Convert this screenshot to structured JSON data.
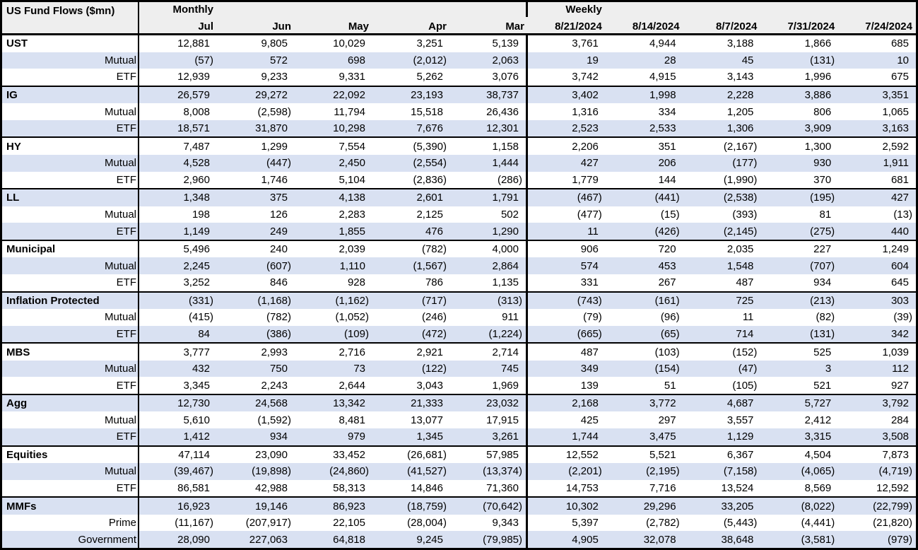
{
  "colors": {
    "band": "#D9E1F2",
    "header_bg": "#EEEEEE",
    "border": "#000000"
  },
  "chart_data": {
    "type": "table",
    "title": "US Fund Flows ($mn)",
    "units": "$mn",
    "column_groups": [
      {
        "label": "Monthly",
        "columns": [
          "Jul",
          "Jun",
          "May",
          "Apr",
          "Mar"
        ]
      },
      {
        "label": "Weekly",
        "columns": [
          "8/21/2024",
          "8/14/2024",
          "8/7/2024",
          "7/31/2024",
          "7/24/2024"
        ]
      }
    ],
    "number_format": "negatives in parentheses, thousands separators",
    "groups": [
      {
        "category": "UST",
        "rows": [
          {
            "label": "UST",
            "bold": true,
            "values": [
              12881,
              9805,
              10029,
              3251,
              5139,
              3761,
              4944,
              3188,
              1866,
              685
            ]
          },
          {
            "label": "Mutual",
            "bold": false,
            "values": [
              -57,
              572,
              698,
              -2012,
              2063,
              19,
              28,
              45,
              -131,
              10
            ]
          },
          {
            "label": "ETF",
            "bold": false,
            "values": [
              12939,
              9233,
              9331,
              5262,
              3076,
              3742,
              4915,
              3143,
              1996,
              675
            ]
          }
        ]
      },
      {
        "category": "IG",
        "rows": [
          {
            "label": "IG",
            "bold": true,
            "values": [
              26579,
              29272,
              22092,
              23193,
              38737,
              3402,
              1998,
              2228,
              3886,
              3351
            ]
          },
          {
            "label": "Mutual",
            "bold": false,
            "values": [
              8008,
              -2598,
              11794,
              15518,
              26436,
              1316,
              334,
              1205,
              806,
              1065
            ]
          },
          {
            "label": "ETF",
            "bold": false,
            "values": [
              18571,
              31870,
              10298,
              7676,
              12301,
              2523,
              2533,
              1306,
              3909,
              3163
            ]
          }
        ]
      },
      {
        "category": "HY",
        "rows": [
          {
            "label": "HY",
            "bold": true,
            "values": [
              7487,
              1299,
              7554,
              -5390,
              1158,
              2206,
              351,
              -2167,
              1300,
              2592
            ]
          },
          {
            "label": "Mutual",
            "bold": false,
            "values": [
              4528,
              -447,
              2450,
              -2554,
              1444,
              427,
              206,
              -177,
              930,
              1911
            ]
          },
          {
            "label": "ETF",
            "bold": false,
            "values": [
              2960,
              1746,
              5104,
              -2836,
              -286,
              1779,
              144,
              -1990,
              370,
              681
            ]
          }
        ]
      },
      {
        "category": "LL",
        "rows": [
          {
            "label": "LL",
            "bold": true,
            "values": [
              1348,
              375,
              4138,
              2601,
              1791,
              -467,
              -441,
              -2538,
              -195,
              427
            ]
          },
          {
            "label": "Mutual",
            "bold": false,
            "values": [
              198,
              126,
              2283,
              2125,
              502,
              -477,
              -15,
              -393,
              81,
              -13
            ]
          },
          {
            "label": "ETF",
            "bold": false,
            "values": [
              1149,
              249,
              1855,
              476,
              1290,
              11,
              -426,
              -2145,
              -275,
              440
            ]
          }
        ]
      },
      {
        "category": "Municipal",
        "rows": [
          {
            "label": "Municipal",
            "bold": true,
            "values": [
              5496,
              240,
              2039,
              -782,
              4000,
              906,
              720,
              2035,
              227,
              1249
            ]
          },
          {
            "label": "Mutual",
            "bold": false,
            "values": [
              2245,
              -607,
              1110,
              -1567,
              2864,
              574,
              453,
              1548,
              -707,
              604
            ]
          },
          {
            "label": "ETF",
            "bold": false,
            "values": [
              3252,
              846,
              928,
              786,
              1135,
              331,
              267,
              487,
              934,
              645
            ]
          }
        ]
      },
      {
        "category": "Inflation Protected",
        "rows": [
          {
            "label": "Inflation Protected",
            "bold": true,
            "values": [
              -331,
              -1168,
              -1162,
              -717,
              -313,
              -743,
              -161,
              725,
              -213,
              303
            ]
          },
          {
            "label": "Mutual",
            "bold": false,
            "values": [
              -415,
              -782,
              -1052,
              -246,
              911,
              -79,
              -96,
              11,
              -82,
              -39
            ]
          },
          {
            "label": "ETF",
            "bold": false,
            "values": [
              84,
              -386,
              -109,
              -472,
              -1224,
              -665,
              -65,
              714,
              -131,
              342
            ]
          }
        ]
      },
      {
        "category": "MBS",
        "rows": [
          {
            "label": "MBS",
            "bold": true,
            "values": [
              3777,
              2993,
              2716,
              2921,
              2714,
              487,
              -103,
              -152,
              525,
              1039
            ]
          },
          {
            "label": "Mutual",
            "bold": false,
            "values": [
              432,
              750,
              73,
              -122,
              745,
              349,
              -154,
              -47,
              3,
              112
            ]
          },
          {
            "label": "ETF",
            "bold": false,
            "values": [
              3345,
              2243,
              2644,
              3043,
              1969,
              139,
              51,
              -105,
              521,
              927
            ]
          }
        ]
      },
      {
        "category": "Agg",
        "rows": [
          {
            "label": "Agg",
            "bold": true,
            "values": [
              12730,
              24568,
              13342,
              21333,
              23032,
              2168,
              3772,
              4687,
              5727,
              3792
            ]
          },
          {
            "label": "Mutual",
            "bold": false,
            "values": [
              5610,
              -1592,
              8481,
              13077,
              17915,
              425,
              297,
              3557,
              2412,
              284
            ]
          },
          {
            "label": "ETF",
            "bold": false,
            "values": [
              1412,
              934,
              979,
              1345,
              3261,
              1744,
              3475,
              1129,
              3315,
              3508
            ]
          }
        ]
      },
      {
        "category": "Equities",
        "rows": [
          {
            "label": "Equities",
            "bold": true,
            "values": [
              47114,
              23090,
              33452,
              -26681,
              57985,
              12552,
              5521,
              6367,
              4504,
              7873
            ]
          },
          {
            "label": "Mutual",
            "bold": false,
            "values": [
              -39467,
              -19898,
              -24860,
              -41527,
              -13374,
              -2201,
              -2195,
              -7158,
              -4065,
              -4719
            ]
          },
          {
            "label": "ETF",
            "bold": false,
            "values": [
              86581,
              42988,
              58313,
              14846,
              71360,
              14753,
              7716,
              13524,
              8569,
              12592
            ]
          }
        ]
      },
      {
        "category": "MMFs",
        "rows": [
          {
            "label": "MMFs",
            "bold": true,
            "values": [
              16923,
              19146,
              86923,
              -18759,
              -70642,
              10302,
              29296,
              33205,
              -8022,
              -22799
            ]
          },
          {
            "label": "Prime",
            "bold": false,
            "values": [
              -11167,
              -207917,
              22105,
              -28004,
              9343,
              5397,
              -2782,
              -5443,
              -4441,
              -21820
            ]
          },
          {
            "label": "Government",
            "bold": false,
            "values": [
              28090,
              227063,
              64818,
              9245,
              -79985,
              4905,
              32078,
              38648,
              -3581,
              -979
            ]
          }
        ]
      }
    ]
  }
}
